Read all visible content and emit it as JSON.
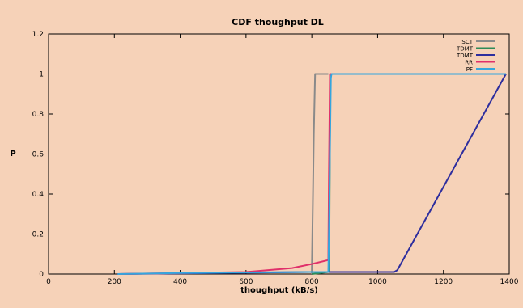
{
  "colors": {
    "background": "#f6d2b8",
    "plot_background": "#f6d2b8",
    "grid": "#c9b4a3",
    "axis": "#000000"
  },
  "chart_data": {
    "type": "line",
    "title": "CDF thoughput DL",
    "xlabel": "thoughput (kB/s)",
    "ylabel": "P",
    "xlim": [
      0,
      1400
    ],
    "ylim": [
      0,
      1.2
    ],
    "x_ticks": [
      0,
      200,
      400,
      600,
      800,
      1000,
      1200,
      1400
    ],
    "y_ticks": [
      0,
      0.2,
      0.4,
      0.6,
      0.8,
      1,
      1.2
    ],
    "y_tick_labels": [
      "0",
      "0.2",
      "0.4",
      "0.6",
      "0.8",
      "1",
      "1.2"
    ],
    "grid": false,
    "legend_position": "top-right",
    "series": [
      {
        "name": "SCT",
        "color": "#8a8a8a",
        "points": [
          [
            800,
            0
          ],
          [
            803,
            0.35
          ],
          [
            806,
            0.7
          ],
          [
            810,
            1
          ],
          [
            850,
            1
          ]
        ]
      },
      {
        "name": "TDMT",
        "color": "#2e8b57",
        "points": [
          [
            800,
            0
          ],
          [
            850,
            0.01
          ],
          [
            853,
            0.02
          ],
          [
            856,
            1
          ],
          [
            1390,
            1
          ]
        ]
      },
      {
        "name": "TDMT",
        "color": "#2e2e9e",
        "points": [
          [
            210,
            0
          ],
          [
            500,
            0.005
          ],
          [
            800,
            0.01
          ],
          [
            1050,
            0.01
          ],
          [
            1060,
            0.02
          ],
          [
            1390,
            1
          ]
        ]
      },
      {
        "name": "RR",
        "color": "#e0306a",
        "points": [
          [
            210,
            0
          ],
          [
            600,
            0.01
          ],
          [
            740,
            0.03
          ],
          [
            800,
            0.05
          ],
          [
            850,
            0.07
          ],
          [
            852,
            0.5
          ],
          [
            855,
            1
          ],
          [
            860,
            1
          ]
        ]
      },
      {
        "name": "PF",
        "color": "#35a6de",
        "points": [
          [
            210,
            0
          ],
          [
            400,
            0.005
          ],
          [
            600,
            0.008
          ],
          [
            800,
            0.01
          ],
          [
            850,
            0.01
          ],
          [
            853,
            0.3
          ],
          [
            855,
            0.6
          ],
          [
            858,
            0.98
          ],
          [
            860,
            1
          ],
          [
            1390,
            1
          ]
        ]
      }
    ]
  }
}
